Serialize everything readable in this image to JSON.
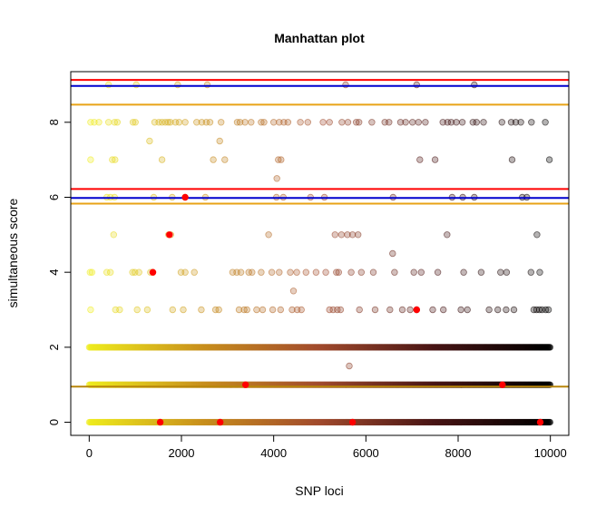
{
  "chart_data": {
    "type": "scatter",
    "title": "Manhattan plot",
    "xlabel": "SNP loci",
    "ylabel": "simultaneous score",
    "xlim": [
      -400,
      10400
    ],
    "ylim": [
      -0.35,
      9.35
    ],
    "x_ticks": [
      0,
      2000,
      4000,
      6000,
      8000,
      10000
    ],
    "y_ticks": [
      0,
      2,
      4,
      6,
      8
    ],
    "n_loci": 10000,
    "grid": false,
    "legend": "none",
    "point_gradient": [
      "#f0ee1e",
      "#c9901d",
      "#a34c2e",
      "#4a1616",
      "#000000"
    ],
    "highlight_color": "#ff0000",
    "hlines": [
      {
        "y": 9.13,
        "color": "#ff0000"
      },
      {
        "y": 8.97,
        "color": "#0000cd"
      },
      {
        "y": 8.47,
        "color": "#e8a317"
      },
      {
        "y": 6.22,
        "color": "#ff0000"
      },
      {
        "y": 5.98,
        "color": "#0000cd"
      },
      {
        "y": 5.83,
        "color": "#e8a317"
      },
      {
        "y": 0.95,
        "color": "#b8860b"
      }
    ],
    "dense_rows": [
      0,
      1,
      2
    ],
    "sparse_points": [
      {
        "x": 420,
        "y": 9
      },
      {
        "x": 1020,
        "y": 9
      },
      {
        "x": 1920,
        "y": 9
      },
      {
        "x": 2560,
        "y": 9
      },
      {
        "x": 5560,
        "y": 9
      },
      {
        "x": 7100,
        "y": 9
      },
      {
        "x": 8350,
        "y": 9
      },
      {
        "x": 30,
        "y": 8
      },
      {
        "x": 110,
        "y": 8
      },
      {
        "x": 210,
        "y": 8
      },
      {
        "x": 420,
        "y": 8
      },
      {
        "x": 550,
        "y": 8
      },
      {
        "x": 610,
        "y": 8
      },
      {
        "x": 950,
        "y": 8
      },
      {
        "x": 1000,
        "y": 8
      },
      {
        "x": 1420,
        "y": 8
      },
      {
        "x": 1510,
        "y": 8
      },
      {
        "x": 1580,
        "y": 8
      },
      {
        "x": 1650,
        "y": 8
      },
      {
        "x": 1710,
        "y": 8
      },
      {
        "x": 1760,
        "y": 8
      },
      {
        "x": 1870,
        "y": 8
      },
      {
        "x": 1950,
        "y": 8
      },
      {
        "x": 2080,
        "y": 8
      },
      {
        "x": 2330,
        "y": 8
      },
      {
        "x": 2440,
        "y": 8
      },
      {
        "x": 2540,
        "y": 8
      },
      {
        "x": 2620,
        "y": 8
      },
      {
        "x": 2860,
        "y": 8
      },
      {
        "x": 3210,
        "y": 8
      },
      {
        "x": 3270,
        "y": 8
      },
      {
        "x": 3380,
        "y": 8
      },
      {
        "x": 3510,
        "y": 8
      },
      {
        "x": 3730,
        "y": 8
      },
      {
        "x": 3790,
        "y": 8
      },
      {
        "x": 4000,
        "y": 8
      },
      {
        "x": 4120,
        "y": 8
      },
      {
        "x": 4220,
        "y": 8
      },
      {
        "x": 4310,
        "y": 8
      },
      {
        "x": 4580,
        "y": 8
      },
      {
        "x": 4740,
        "y": 8
      },
      {
        "x": 5070,
        "y": 8
      },
      {
        "x": 5210,
        "y": 8
      },
      {
        "x": 5480,
        "y": 8
      },
      {
        "x": 5610,
        "y": 8
      },
      {
        "x": 5790,
        "y": 8
      },
      {
        "x": 5850,
        "y": 8
      },
      {
        "x": 6130,
        "y": 8
      },
      {
        "x": 6410,
        "y": 8
      },
      {
        "x": 6500,
        "y": 8
      },
      {
        "x": 6750,
        "y": 8
      },
      {
        "x": 6860,
        "y": 8
      },
      {
        "x": 7010,
        "y": 8
      },
      {
        "x": 7140,
        "y": 8
      },
      {
        "x": 7290,
        "y": 8
      },
      {
        "x": 7670,
        "y": 8
      },
      {
        "x": 7770,
        "y": 8
      },
      {
        "x": 7850,
        "y": 8
      },
      {
        "x": 7960,
        "y": 8
      },
      {
        "x": 8090,
        "y": 8
      },
      {
        "x": 8320,
        "y": 8
      },
      {
        "x": 8400,
        "y": 8
      },
      {
        "x": 8550,
        "y": 8
      },
      {
        "x": 8950,
        "y": 8
      },
      {
        "x": 9150,
        "y": 8
      },
      {
        "x": 9250,
        "y": 8
      },
      {
        "x": 9360,
        "y": 8
      },
      {
        "x": 9590,
        "y": 8
      },
      {
        "x": 9890,
        "y": 8
      },
      {
        "x": 1310,
        "y": 7.5
      },
      {
        "x": 2830,
        "y": 7.5
      },
      {
        "x": 30,
        "y": 7
      },
      {
        "x": 500,
        "y": 7
      },
      {
        "x": 560,
        "y": 7
      },
      {
        "x": 1580,
        "y": 7
      },
      {
        "x": 2690,
        "y": 7
      },
      {
        "x": 2940,
        "y": 7
      },
      {
        "x": 4100,
        "y": 7
      },
      {
        "x": 4160,
        "y": 7
      },
      {
        "x": 7170,
        "y": 7
      },
      {
        "x": 7500,
        "y": 7
      },
      {
        "x": 9170,
        "y": 7
      },
      {
        "x": 9980,
        "y": 7
      },
      {
        "x": 4070,
        "y": 6.5
      },
      {
        "x": 380,
        "y": 6
      },
      {
        "x": 460,
        "y": 6
      },
      {
        "x": 550,
        "y": 6
      },
      {
        "x": 1400,
        "y": 6
      },
      {
        "x": 1800,
        "y": 6
      },
      {
        "x": 2080,
        "y": 6
      },
      {
        "x": 2520,
        "y": 6
      },
      {
        "x": 4060,
        "y": 6
      },
      {
        "x": 4210,
        "y": 6
      },
      {
        "x": 4800,
        "y": 6
      },
      {
        "x": 5100,
        "y": 6
      },
      {
        "x": 6590,
        "y": 6
      },
      {
        "x": 7870,
        "y": 6
      },
      {
        "x": 8100,
        "y": 6
      },
      {
        "x": 8350,
        "y": 6
      },
      {
        "x": 9390,
        "y": 6
      },
      {
        "x": 9490,
        "y": 6
      },
      {
        "x": 530,
        "y": 5
      },
      {
        "x": 1720,
        "y": 5
      },
      {
        "x": 1770,
        "y": 5
      },
      {
        "x": 3890,
        "y": 5
      },
      {
        "x": 5330,
        "y": 5
      },
      {
        "x": 5470,
        "y": 5
      },
      {
        "x": 5600,
        "y": 5
      },
      {
        "x": 5710,
        "y": 5
      },
      {
        "x": 5830,
        "y": 5
      },
      {
        "x": 7760,
        "y": 5
      },
      {
        "x": 9710,
        "y": 5
      },
      {
        "x": 6580,
        "y": 4.5
      },
      {
        "x": 20,
        "y": 4
      },
      {
        "x": 60,
        "y": 4
      },
      {
        "x": 380,
        "y": 4
      },
      {
        "x": 460,
        "y": 4
      },
      {
        "x": 940,
        "y": 4
      },
      {
        "x": 990,
        "y": 4
      },
      {
        "x": 1080,
        "y": 4
      },
      {
        "x": 1330,
        "y": 4
      },
      {
        "x": 1380,
        "y": 4
      },
      {
        "x": 1990,
        "y": 4
      },
      {
        "x": 2080,
        "y": 4
      },
      {
        "x": 2280,
        "y": 4
      },
      {
        "x": 3110,
        "y": 4
      },
      {
        "x": 3200,
        "y": 4
      },
      {
        "x": 3290,
        "y": 4
      },
      {
        "x": 3460,
        "y": 4
      },
      {
        "x": 3530,
        "y": 4
      },
      {
        "x": 3730,
        "y": 4
      },
      {
        "x": 3960,
        "y": 4
      },
      {
        "x": 4120,
        "y": 4
      },
      {
        "x": 4360,
        "y": 4
      },
      {
        "x": 4500,
        "y": 4
      },
      {
        "x": 4700,
        "y": 4
      },
      {
        "x": 4920,
        "y": 4
      },
      {
        "x": 5130,
        "y": 4
      },
      {
        "x": 5360,
        "y": 4
      },
      {
        "x": 5410,
        "y": 4
      },
      {
        "x": 5680,
        "y": 4
      },
      {
        "x": 5900,
        "y": 4
      },
      {
        "x": 6160,
        "y": 4
      },
      {
        "x": 6620,
        "y": 4
      },
      {
        "x": 7040,
        "y": 4
      },
      {
        "x": 7200,
        "y": 4
      },
      {
        "x": 7560,
        "y": 4
      },
      {
        "x": 8120,
        "y": 4
      },
      {
        "x": 8500,
        "y": 4
      },
      {
        "x": 8920,
        "y": 4
      },
      {
        "x": 9050,
        "y": 4
      },
      {
        "x": 9580,
        "y": 4
      },
      {
        "x": 9770,
        "y": 4
      },
      {
        "x": 4430,
        "y": 3.5
      },
      {
        "x": 30,
        "y": 3
      },
      {
        "x": 570,
        "y": 3
      },
      {
        "x": 660,
        "y": 3
      },
      {
        "x": 1040,
        "y": 3
      },
      {
        "x": 1260,
        "y": 3
      },
      {
        "x": 1810,
        "y": 3
      },
      {
        "x": 2040,
        "y": 3
      },
      {
        "x": 2430,
        "y": 3
      },
      {
        "x": 2740,
        "y": 3
      },
      {
        "x": 2810,
        "y": 3
      },
      {
        "x": 3250,
        "y": 3
      },
      {
        "x": 3360,
        "y": 3
      },
      {
        "x": 3420,
        "y": 3
      },
      {
        "x": 3630,
        "y": 3
      },
      {
        "x": 3760,
        "y": 3
      },
      {
        "x": 3980,
        "y": 3
      },
      {
        "x": 4150,
        "y": 3
      },
      {
        "x": 4400,
        "y": 3
      },
      {
        "x": 4510,
        "y": 3
      },
      {
        "x": 4600,
        "y": 3
      },
      {
        "x": 5210,
        "y": 3
      },
      {
        "x": 5290,
        "y": 3
      },
      {
        "x": 5380,
        "y": 3
      },
      {
        "x": 5450,
        "y": 3
      },
      {
        "x": 5860,
        "y": 3
      },
      {
        "x": 6200,
        "y": 3
      },
      {
        "x": 6520,
        "y": 3
      },
      {
        "x": 6790,
        "y": 3
      },
      {
        "x": 6960,
        "y": 3
      },
      {
        "x": 7100,
        "y": 3
      },
      {
        "x": 7450,
        "y": 3
      },
      {
        "x": 7680,
        "y": 3
      },
      {
        "x": 8060,
        "y": 3
      },
      {
        "x": 8200,
        "y": 3
      },
      {
        "x": 8670,
        "y": 3
      },
      {
        "x": 8860,
        "y": 3
      },
      {
        "x": 9040,
        "y": 3
      },
      {
        "x": 9210,
        "y": 3
      },
      {
        "x": 9640,
        "y": 3
      },
      {
        "x": 9700,
        "y": 3
      },
      {
        "x": 9760,
        "y": 3
      },
      {
        "x": 9820,
        "y": 3
      },
      {
        "x": 9900,
        "y": 3
      },
      {
        "x": 9960,
        "y": 3
      },
      {
        "x": 5640,
        "y": 1.5
      }
    ],
    "highlighted_points": [
      {
        "x": 2080,
        "y": 6
      },
      {
        "x": 1740,
        "y": 5
      },
      {
        "x": 1380,
        "y": 4
      },
      {
        "x": 7100,
        "y": 3
      },
      {
        "x": 3390,
        "y": 1
      },
      {
        "x": 8960,
        "y": 1
      },
      {
        "x": 1540,
        "y": 0
      },
      {
        "x": 2840,
        "y": 0
      },
      {
        "x": 5710,
        "y": 0
      },
      {
        "x": 9780,
        "y": 0
      }
    ]
  }
}
